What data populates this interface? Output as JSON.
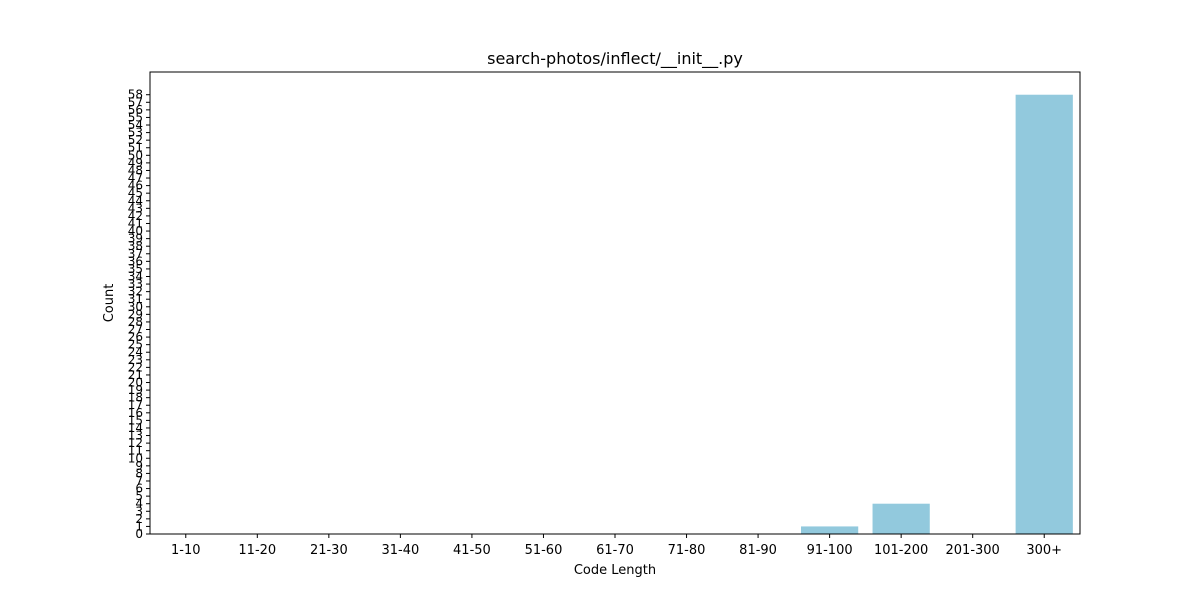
{
  "chart_data": {
    "type": "bar",
    "title": "search-photos/inflect/__init__.py",
    "xlabel": "Code Length",
    "ylabel": "Count",
    "categories": [
      "1-10",
      "11-20",
      "21-30",
      "31-40",
      "41-50",
      "51-60",
      "61-70",
      "71-80",
      "81-90",
      "91-100",
      "101-200",
      "201-300",
      "300+"
    ],
    "values": [
      0,
      0,
      0,
      0,
      0,
      0,
      0,
      0,
      0,
      1,
      4,
      0,
      58
    ],
    "ylim": [
      0,
      61
    ],
    "yticks": [
      0,
      1,
      2,
      3,
      4,
      5,
      6,
      7,
      8,
      9,
      10,
      11,
      12,
      13,
      14,
      15,
      16,
      17,
      18,
      19,
      20,
      21,
      22,
      23,
      24,
      25,
      26,
      27,
      28,
      29,
      30,
      31,
      32,
      33,
      34,
      35,
      36,
      37,
      38,
      39,
      40,
      41,
      42,
      43,
      44,
      45,
      46,
      47,
      48,
      49,
      50,
      51,
      52,
      53,
      54,
      55,
      56,
      57,
      58
    ],
    "bar_color": "#92c9dd",
    "grid": false,
    "legend": "none"
  }
}
